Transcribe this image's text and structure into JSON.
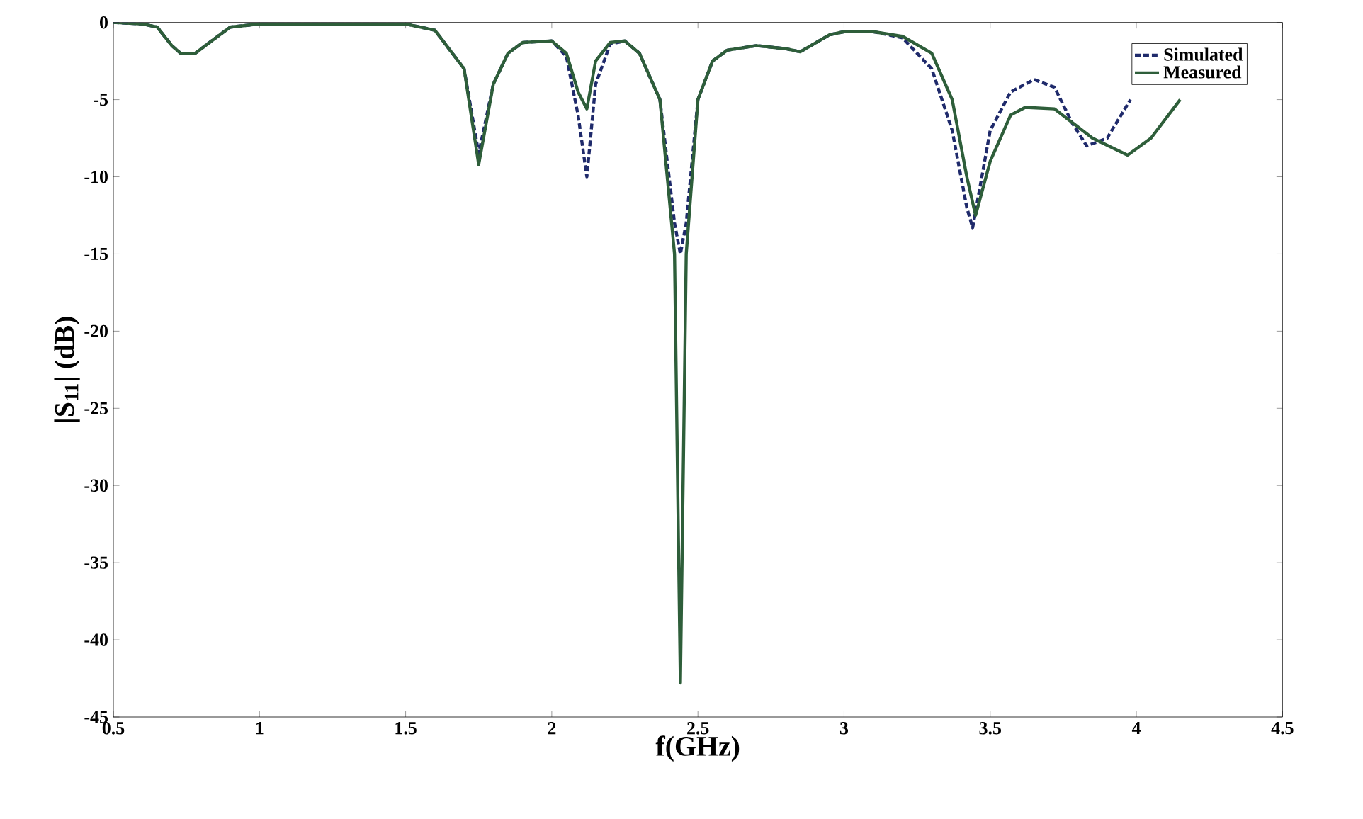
{
  "chart_data": {
    "type": "line",
    "xlabel": "f(GHz)",
    "ylabel": "|S$_{11}$| (dB)",
    "xlim": [
      0.5,
      4.5
    ],
    "ylim": [
      -45,
      0
    ],
    "xticks": [
      0.5,
      1,
      1.5,
      2,
      2.5,
      3,
      3.5,
      4,
      4.5
    ],
    "yticks": [
      -45,
      -40,
      -35,
      -30,
      -25,
      -20,
      -15,
      -10,
      -5,
      0
    ],
    "legend": "top right",
    "grid": false,
    "series": [
      {
        "name": "Simulated",
        "color": "#1f2a6b",
        "line_style": "dashed",
        "x": [
          0.5,
          0.6,
          0.65,
          0.7,
          0.73,
          0.78,
          0.85,
          0.9,
          1.0,
          1.2,
          1.5,
          1.6,
          1.7,
          1.75,
          1.8,
          1.85,
          1.9,
          2.0,
          2.05,
          2.09,
          2.12,
          2.15,
          2.2,
          2.25,
          2.3,
          2.37,
          2.42,
          2.44,
          2.46,
          2.5,
          2.55,
          2.6,
          2.7,
          2.8,
          2.85,
          2.95,
          3.0,
          3.1,
          3.2,
          3.3,
          3.37,
          3.42,
          3.44,
          3.5,
          3.57,
          3.65,
          3.72,
          3.78,
          3.83,
          3.9,
          3.98
        ],
        "values": [
          0,
          -0.1,
          -0.3,
          -1.5,
          -2,
          -2,
          -1,
          -0.3,
          -0.1,
          -0.1,
          -0.1,
          -0.5,
          -3,
          -8.5,
          -4,
          -2,
          -1.3,
          -1.2,
          -2.2,
          -6,
          -10,
          -4,
          -1.4,
          -1.2,
          -2,
          -5,
          -13,
          -15,
          -13,
          -5,
          -2.5,
          -1.8,
          -1.5,
          -1.7,
          -1.9,
          -0.8,
          -0.6,
          -0.6,
          -1,
          -3,
          -7,
          -12,
          -13.3,
          -7,
          -4.5,
          -3.7,
          -4.2,
          -6.5,
          -8,
          -7.5,
          -5
        ]
      },
      {
        "name": "Measured",
        "color": "#2e5e3a",
        "line_style": "solid",
        "x": [
          0.5,
          0.6,
          0.65,
          0.7,
          0.73,
          0.78,
          0.85,
          0.9,
          1.0,
          1.2,
          1.5,
          1.6,
          1.7,
          1.75,
          1.8,
          1.85,
          1.9,
          2.0,
          2.05,
          2.09,
          2.12,
          2.15,
          2.2,
          2.25,
          2.3,
          2.37,
          2.42,
          2.44,
          2.46,
          2.5,
          2.55,
          2.6,
          2.7,
          2.8,
          2.85,
          2.95,
          3.0,
          3.1,
          3.2,
          3.3,
          3.37,
          3.42,
          3.45,
          3.5,
          3.57,
          3.62,
          3.72,
          3.85,
          3.97,
          4.05,
          4.15
        ],
        "values": [
          0,
          -0.1,
          -0.3,
          -1.5,
          -2,
          -2,
          -1,
          -0.3,
          -0.1,
          -0.1,
          -0.1,
          -0.5,
          -3,
          -9.2,
          -4,
          -2,
          -1.3,
          -1.2,
          -2,
          -4.5,
          -5.6,
          -2.5,
          -1.3,
          -1.2,
          -2,
          -5,
          -15,
          -42.8,
          -15,
          -5,
          -2.5,
          -1.8,
          -1.5,
          -1.7,
          -1.9,
          -0.8,
          -0.6,
          -0.6,
          -0.9,
          -2,
          -5,
          -10,
          -12.5,
          -9,
          -6,
          -5.5,
          -5.6,
          -7.5,
          -8.6,
          -7.5,
          -5
        ]
      }
    ]
  }
}
